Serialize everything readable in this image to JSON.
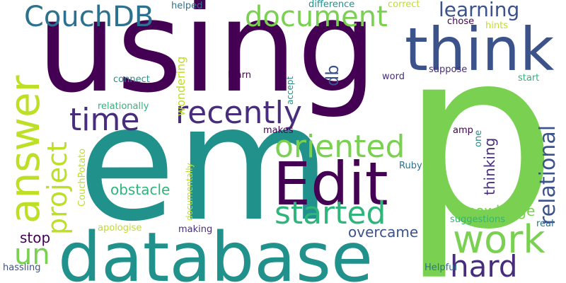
{
  "colors": {
    "purple": "#440154",
    "teal": "#21918c",
    "green": "#2fb47c",
    "lime": "#7ad151",
    "yellow": "#bddf26",
    "blue": "#3b528b",
    "indigo": "#472d7b",
    "sea": "#2c728e"
  },
  "words": {
    "using": "using",
    "em": "em",
    "p": "p",
    "database": "database",
    "think": "think",
    "answer": "answer",
    "Edit": "Edit",
    "document": "document",
    "CouchDB": "CouchDB",
    "recently": "recently",
    "oriented": "oriented",
    "work": "work",
    "started": "started",
    "project": "project",
    "time": "time",
    "hard": "hard",
    "relational": "relational",
    "learning": "learning",
    "un": "un",
    "db": "db",
    "thinking": "thinking",
    "knowledge": "knowledge",
    "overcame": "overcame",
    "obstacle": "obstacle",
    "stop": "stop",
    "wondering": "wondering",
    "helped": "helped",
    "difference": "difference",
    "correct": "correct",
    "chose": "chose",
    "hints": "hints",
    "connect": "connect",
    "learn": "learn",
    "accept": "accept",
    "word": "word",
    "suppose": "suppose",
    "start": "start",
    "relationally": "relationally",
    "makes": "makes",
    "amp": "amp",
    "one": "one",
    "Ruby": "Ruby",
    "CouchPotato": "CouchPotato",
    "documentally": "documentally",
    "apologise": "apologise",
    "suggestions": "suggestions",
    "real": "real",
    "making": "making",
    "hassling": "hassling",
    "Helpful": "Helpful"
  }
}
